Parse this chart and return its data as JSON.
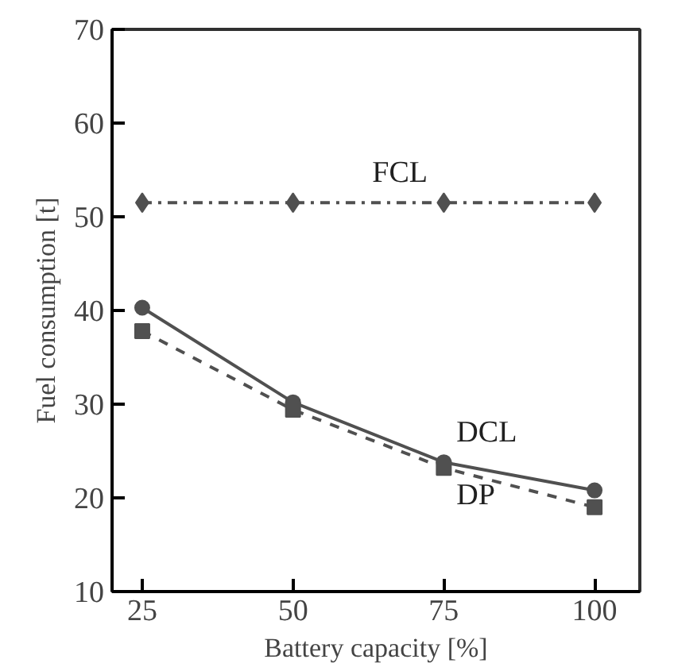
{
  "chart_data": {
    "type": "line",
    "xlabel": "Battery capacity [%]",
    "ylabel": "Fuel consumption [t]",
    "x": [
      25,
      50,
      75,
      100
    ],
    "xlim": [
      20,
      107.5
    ],
    "xticks": [
      25,
      50,
      75,
      100
    ],
    "ylim": [
      10,
      70
    ],
    "yticks": [
      10,
      20,
      30,
      40,
      50,
      60,
      70
    ],
    "grid": false,
    "series": [
      {
        "name": "FCL",
        "color": "#505050",
        "values": [
          51.5,
          51.5,
          51.5,
          51.5
        ],
        "marker": "diamond",
        "line_style": "dashdot"
      },
      {
        "name": "DCL",
        "color": "#505050",
        "values": [
          40.3,
          30.2,
          23.8,
          20.8
        ],
        "marker": "circle",
        "line_style": "solid"
      },
      {
        "name": "DP",
        "color": "#505050",
        "values": [
          37.8,
          29.4,
          23.2,
          19.0
        ],
        "marker": "square",
        "line_style": "dashed"
      }
    ]
  }
}
